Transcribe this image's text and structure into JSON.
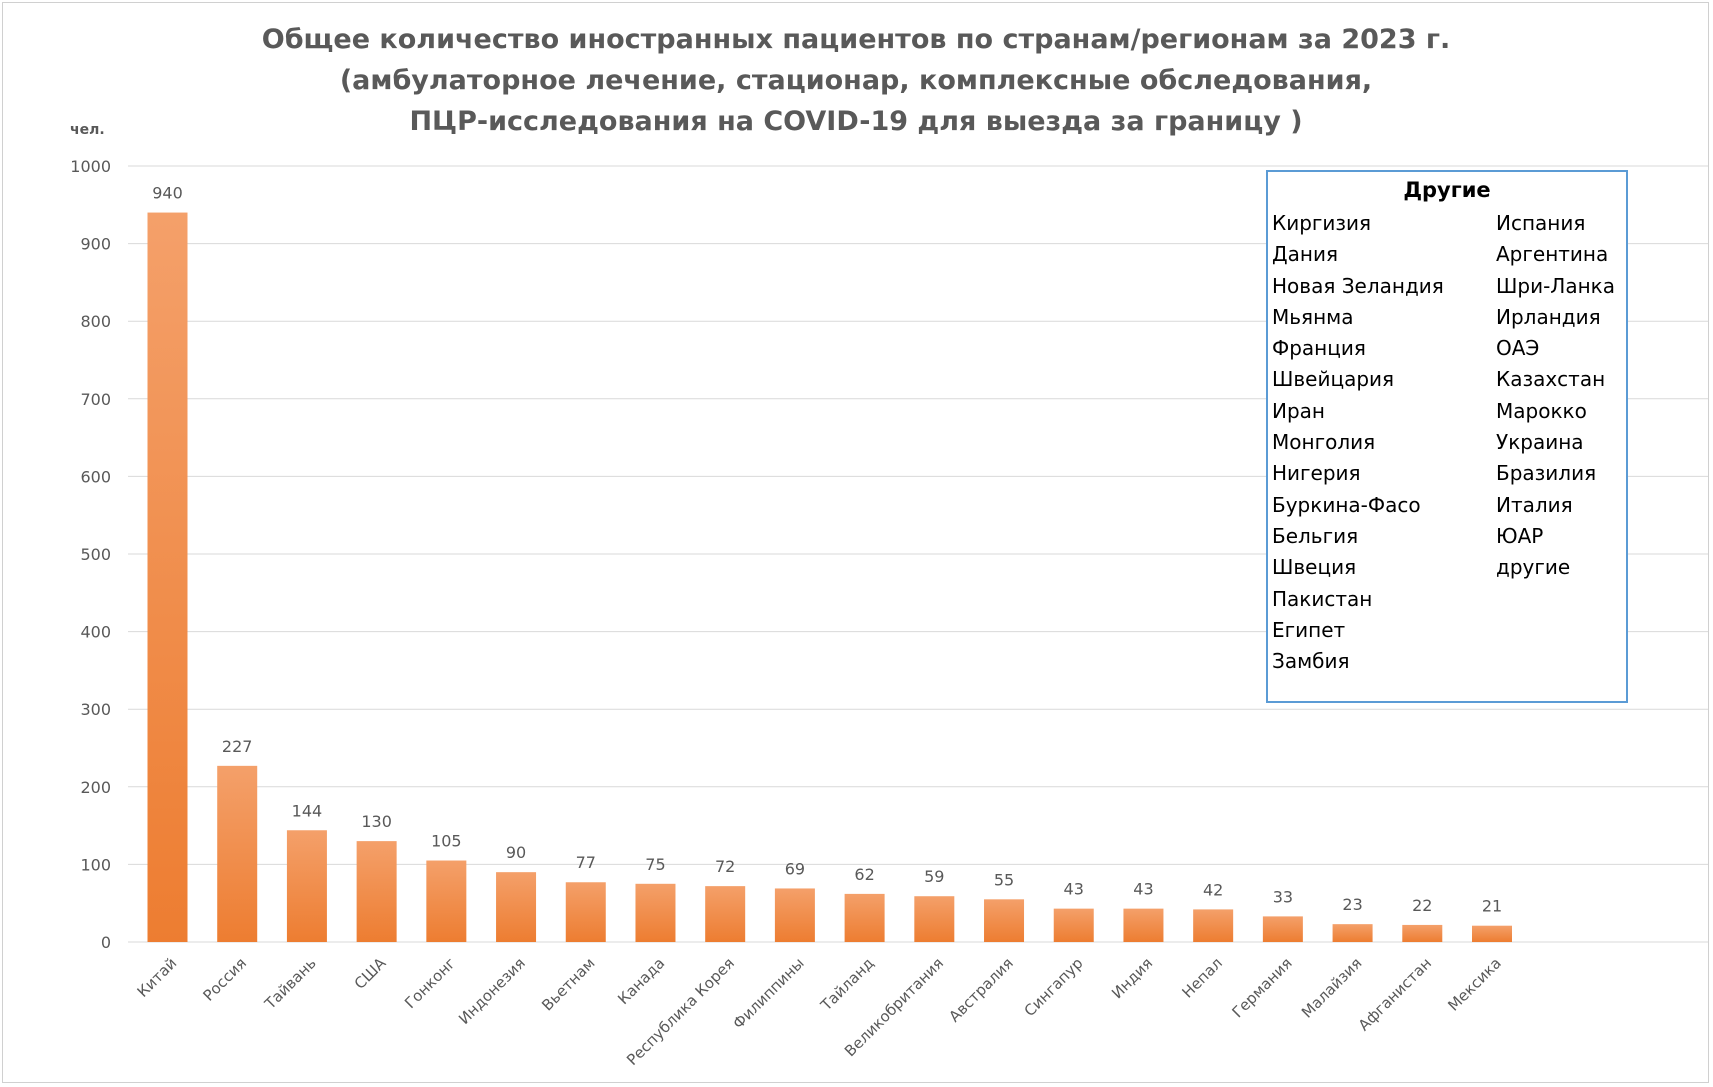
{
  "chart_data": {
    "type": "bar",
    "title": [
      "Общее количество иностранных пациентов по странам/регионам за 2023 г.",
      "(амбулаторное лечение, стационар, комплексные обследования,",
      "ПЦР-исследования на COVID-19 для выезда за границу )"
    ],
    "ylabel": "чел.",
    "xlabel": "",
    "ylim": [
      0,
      1000
    ],
    "yticks": [
      "0",
      "100",
      "200",
      "300",
      "400",
      "500",
      "600",
      "700",
      "800",
      "900",
      "1000"
    ],
    "grid": true,
    "categories": [
      "Китай",
      "Россия",
      "Тайвань",
      "США",
      "Гонконг",
      "Индонезия",
      "Вьетнам",
      "Канада",
      "Республика Корея",
      "Филиппины",
      "Тайланд",
      "Великобритания",
      "Австралия",
      "Сингапур",
      "Индия",
      "Непал",
      "Германия",
      "Малайзия",
      "Афганистан",
      "Мексика"
    ],
    "values": [
      940,
      227,
      144,
      130,
      105,
      90,
      77,
      75,
      72,
      69,
      62,
      59,
      55,
      43,
      43,
      42,
      33,
      23,
      22,
      21
    ],
    "bar_color": "#ed7d31",
    "bar_color_light": "#f4a06a"
  },
  "others": {
    "title": "Другие",
    "left": [
      "Киргизия",
      "Дания",
      "Новая Зеландия",
      "Мьянма",
      "Франция",
      "Швейцария",
      "Иран",
      "Монголия",
      "Нигерия",
      "Буркина-Фасо",
      "Бельгия",
      "Швеция",
      "Пакистан",
      "Египет",
      "Замбия"
    ],
    "right": [
      "Испания",
      "Аргентина",
      "Шри-Ланка",
      "Ирландия",
      "ОАЭ",
      "Казахстан",
      "Марокко",
      "Украина",
      "Бразилия",
      "Италия",
      "ЮАР",
      "другие"
    ],
    "border_color": "#5b9bd5"
  }
}
